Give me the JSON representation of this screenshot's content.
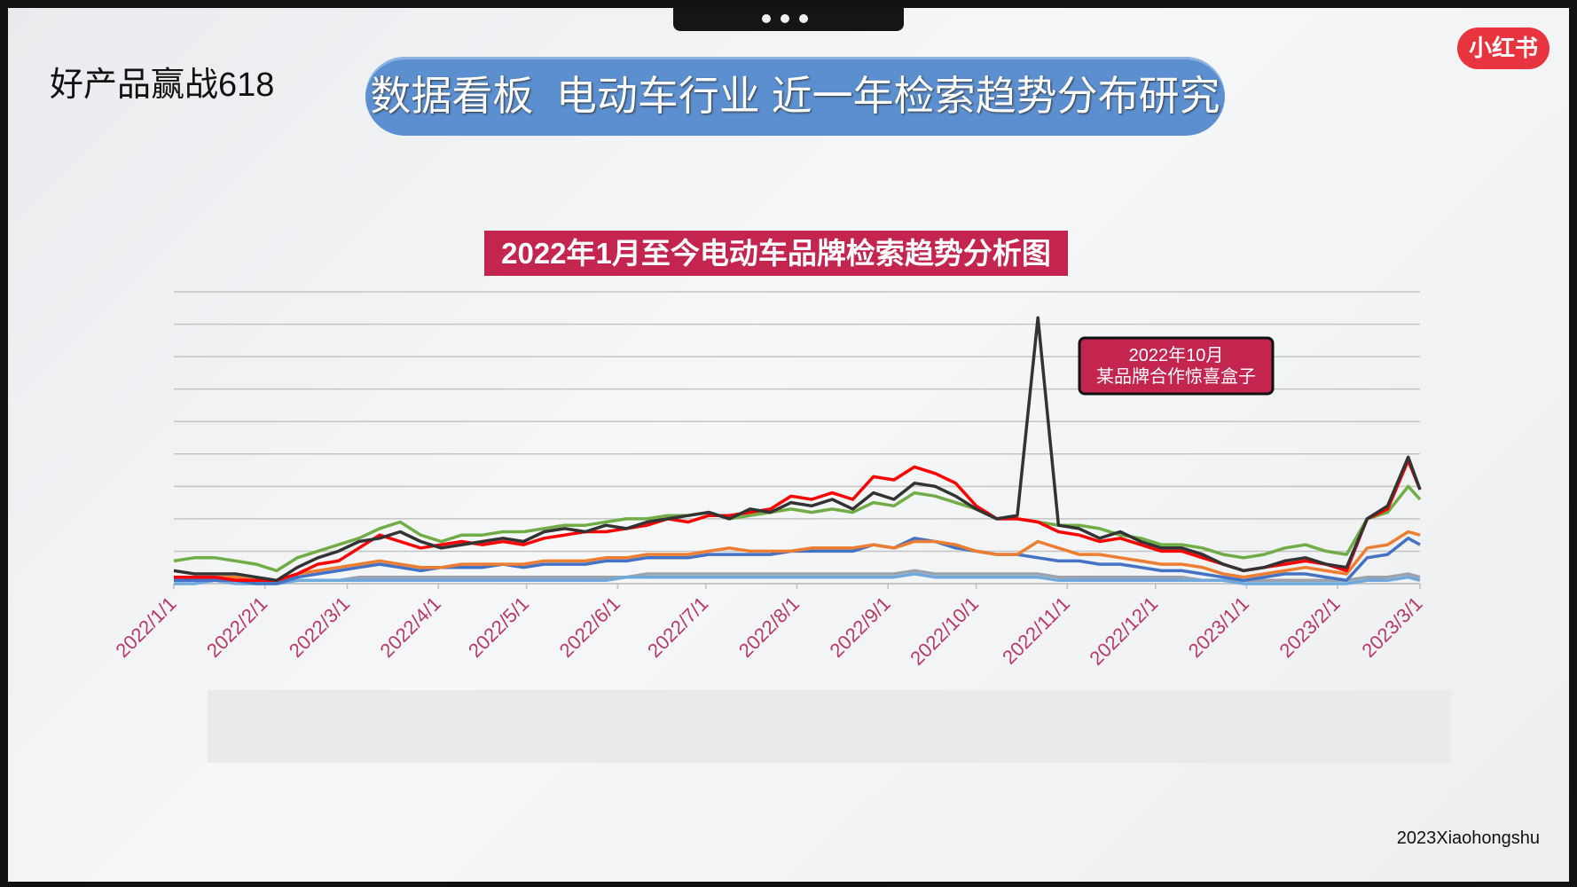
{
  "header": {
    "title": "好产品赢战618",
    "banner": "数据看板  电动车行业 近一年检索趋势分布研究",
    "logo": "小红书"
  },
  "footer": "2023Xiaohongshu",
  "chart_data": {
    "type": "line",
    "title": "2022年1月至今电动车品牌检索趋势分析图",
    "annotation": [
      "2022年10月",
      "某品牌合作惊喜盒子"
    ],
    "x": [
      "2022/1/1",
      "2022/1/8",
      "2022/1/15",
      "2022/1/22",
      "2022/1/29",
      "2022/2/5",
      "2022/2/12",
      "2022/2/19",
      "2022/2/26",
      "2022/3/5",
      "2022/3/12",
      "2022/3/19",
      "2022/3/26",
      "2022/4/2",
      "2022/4/9",
      "2022/4/16",
      "2022/4/23",
      "2022/4/30",
      "2022/5/7",
      "2022/5/14",
      "2022/5/21",
      "2022/5/28",
      "2022/6/4",
      "2022/6/11",
      "2022/6/18",
      "2022/6/25",
      "2022/7/2",
      "2022/7/9",
      "2022/7/16",
      "2022/7/23",
      "2022/7/30",
      "2022/8/6",
      "2022/8/13",
      "2022/8/20",
      "2022/8/27",
      "2022/9/3",
      "2022/9/10",
      "2022/9/17",
      "2022/9/24",
      "2022/10/1",
      "2022/10/8",
      "2022/10/15",
      "2022/10/22",
      "2022/10/29",
      "2022/11/5",
      "2022/11/12",
      "2022/11/19",
      "2022/11/26",
      "2022/12/3",
      "2022/12/10",
      "2022/12/17",
      "2022/12/24",
      "2022/12/31",
      "2023/1/7",
      "2023/1/14",
      "2023/1/21",
      "2023/1/28",
      "2023/2/4",
      "2023/2/11",
      "2023/2/18",
      "2023/2/25",
      "2023/3/1"
    ],
    "xlim": [
      "2022/1/1",
      "2023/3/1"
    ],
    "xticks": [
      "2022/1/1",
      "2022/2/1",
      "2022/3/1",
      "2022/4/1",
      "2022/5/1",
      "2022/6/1",
      "2022/7/1",
      "2022/8/1",
      "2022/9/1",
      "2022/10/1",
      "2022/11/1",
      "2022/12/1",
      "2023/1/1",
      "2023/2/1",
      "2023/3/1"
    ],
    "ylim": [
      0,
      9
    ],
    "yticks": [
      0,
      1,
      2,
      3,
      4,
      5,
      6,
      7,
      8,
      9
    ],
    "ytick_labels": false,
    "grid": true,
    "series": [
      {
        "color": "#9aa3ad",
        "values": [
          0.1,
          0.1,
          0.1,
          0.1,
          0.1,
          0.0,
          0.1,
          0.1,
          0.1,
          0.2,
          0.2,
          0.2,
          0.2,
          0.2,
          0.2,
          0.2,
          0.2,
          0.2,
          0.2,
          0.2,
          0.2,
          0.2,
          0.2,
          0.3,
          0.3,
          0.3,
          0.3,
          0.3,
          0.3,
          0.3,
          0.3,
          0.3,
          0.3,
          0.3,
          0.3,
          0.3,
          0.4,
          0.3,
          0.3,
          0.3,
          0.3,
          0.3,
          0.3,
          0.2,
          0.2,
          0.2,
          0.2,
          0.2,
          0.2,
          0.2,
          0.1,
          0.1,
          0.1,
          0.1,
          0.1,
          0.1,
          0.1,
          0.1,
          0.2,
          0.2,
          0.3,
          0.2
        ]
      },
      {
        "color": "#6fa8dc",
        "values": [
          0.0,
          0.0,
          0.1,
          0.0,
          0.0,
          0.0,
          0.1,
          0.1,
          0.1,
          0.1,
          0.1,
          0.1,
          0.1,
          0.1,
          0.1,
          0.1,
          0.1,
          0.1,
          0.1,
          0.1,
          0.1,
          0.1,
          0.2,
          0.2,
          0.2,
          0.2,
          0.2,
          0.2,
          0.2,
          0.2,
          0.2,
          0.2,
          0.2,
          0.2,
          0.2,
          0.2,
          0.3,
          0.2,
          0.2,
          0.2,
          0.2,
          0.2,
          0.2,
          0.1,
          0.1,
          0.1,
          0.1,
          0.1,
          0.1,
          0.1,
          0.1,
          0.1,
          0.0,
          0.0,
          0.0,
          0.0,
          0.0,
          0.0,
          0.1,
          0.1,
          0.2,
          0.1
        ]
      },
      {
        "color": "#4472c4",
        "values": [
          0.1,
          0.1,
          0.1,
          0.1,
          0.0,
          0.0,
          0.2,
          0.3,
          0.4,
          0.5,
          0.6,
          0.5,
          0.4,
          0.5,
          0.5,
          0.5,
          0.6,
          0.5,
          0.6,
          0.6,
          0.6,
          0.7,
          0.7,
          0.8,
          0.8,
          0.8,
          0.9,
          0.9,
          0.9,
          0.9,
          1.0,
          1.0,
          1.0,
          1.0,
          1.2,
          1.1,
          1.4,
          1.3,
          1.1,
          1.0,
          0.9,
          0.9,
          0.8,
          0.7,
          0.7,
          0.6,
          0.6,
          0.5,
          0.4,
          0.4,
          0.3,
          0.2,
          0.1,
          0.2,
          0.3,
          0.3,
          0.2,
          0.1,
          0.8,
          0.9,
          1.4,
          1.2
        ]
      },
      {
        "color": "#ed7d31",
        "values": [
          0.2,
          0.2,
          0.2,
          0.2,
          0.1,
          0.1,
          0.3,
          0.4,
          0.5,
          0.6,
          0.7,
          0.6,
          0.5,
          0.5,
          0.6,
          0.6,
          0.6,
          0.6,
          0.7,
          0.7,
          0.7,
          0.8,
          0.8,
          0.9,
          0.9,
          0.9,
          1.0,
          1.1,
          1.0,
          1.0,
          1.0,
          1.1,
          1.1,
          1.1,
          1.2,
          1.1,
          1.3,
          1.3,
          1.2,
          1.0,
          0.9,
          0.9,
          1.3,
          1.1,
          0.9,
          0.9,
          0.8,
          0.7,
          0.6,
          0.6,
          0.5,
          0.3,
          0.2,
          0.3,
          0.4,
          0.5,
          0.4,
          0.3,
          1.1,
          1.2,
          1.6,
          1.5
        ]
      },
      {
        "color": "#70ad47",
        "values": [
          0.7,
          0.8,
          0.8,
          0.7,
          0.6,
          0.4,
          0.8,
          1.0,
          1.2,
          1.4,
          1.7,
          1.9,
          1.5,
          1.3,
          1.5,
          1.5,
          1.6,
          1.6,
          1.7,
          1.8,
          1.8,
          1.9,
          2.0,
          2.0,
          2.1,
          2.1,
          2.2,
          2.0,
          2.1,
          2.2,
          2.3,
          2.2,
          2.3,
          2.2,
          2.5,
          2.4,
          2.8,
          2.7,
          2.5,
          2.3,
          2.0,
          2.0,
          1.9,
          1.8,
          1.8,
          1.7,
          1.5,
          1.4,
          1.2,
          1.2,
          1.1,
          0.9,
          0.8,
          0.9,
          1.1,
          1.2,
          1.0,
          0.9,
          2.0,
          2.2,
          3.0,
          2.6
        ]
      },
      {
        "color": "#ff0000",
        "values": [
          0.2,
          0.2,
          0.2,
          0.1,
          0.1,
          0.1,
          0.3,
          0.6,
          0.7,
          1.1,
          1.5,
          1.3,
          1.1,
          1.2,
          1.3,
          1.2,
          1.3,
          1.2,
          1.4,
          1.5,
          1.6,
          1.6,
          1.7,
          1.8,
          2.0,
          1.9,
          2.1,
          2.1,
          2.2,
          2.3,
          2.7,
          2.6,
          2.8,
          2.6,
          3.3,
          3.2,
          3.6,
          3.4,
          3.1,
          2.4,
          2.0,
          2.0,
          1.9,
          1.6,
          1.5,
          1.3,
          1.4,
          1.2,
          1.0,
          1.0,
          0.8,
          0.6,
          0.4,
          0.5,
          0.6,
          0.7,
          0.6,
          0.4,
          2.0,
          2.3,
          3.8,
          2.9
        ]
      },
      {
        "color": "#333333",
        "values": [
          0.4,
          0.3,
          0.3,
          0.3,
          0.2,
          0.1,
          0.5,
          0.8,
          1.0,
          1.3,
          1.4,
          1.6,
          1.3,
          1.1,
          1.2,
          1.3,
          1.4,
          1.3,
          1.6,
          1.7,
          1.6,
          1.8,
          1.7,
          1.9,
          2.0,
          2.1,
          2.2,
          2.0,
          2.3,
          2.2,
          2.5,
          2.4,
          2.6,
          2.3,
          2.8,
          2.6,
          3.1,
          3.0,
          2.7,
          2.3,
          2.0,
          2.1,
          8.2,
          1.8,
          1.7,
          1.4,
          1.6,
          1.3,
          1.1,
          1.1,
          0.9,
          0.6,
          0.4,
          0.5,
          0.7,
          0.8,
          0.6,
          0.5,
          2.0,
          2.4,
          3.9,
          2.9
        ]
      }
    ]
  }
}
